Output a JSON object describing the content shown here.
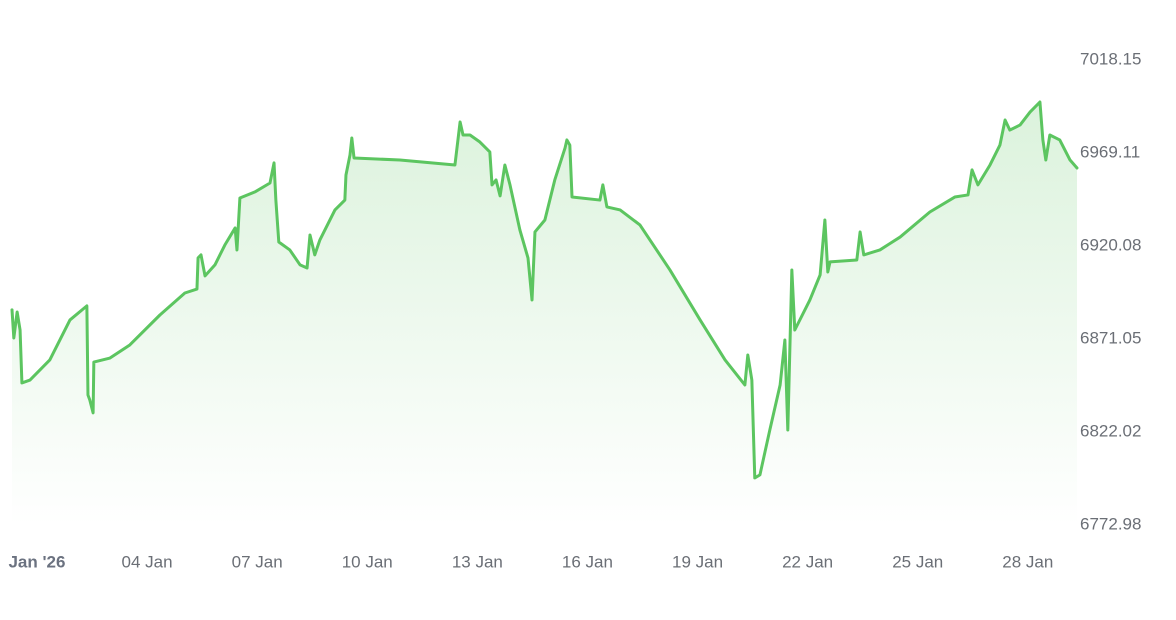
{
  "chart_data": {
    "type": "line",
    "color": "#5cc560",
    "x": [
      0.32,
      0.37,
      0.46,
      0.54,
      0.59,
      0.81,
      1.35,
      1.9,
      2.36,
      2.39,
      2.44,
      2.53,
      2.55,
      2.99,
      3.53,
      4.35,
      5.03,
      5.36,
      5.39,
      5.47,
      5.58,
      5.85,
      6.12,
      6.4,
      6.45,
      6.53,
      6.94,
      7.35,
      7.46,
      7.51,
      7.59,
      7.89,
      8.17,
      8.36,
      8.44,
      8.57,
      8.71,
      9.12,
      9.39,
      9.42,
      9.53,
      9.58,
      9.64,
      10.89,
      12.39,
      12.53,
      12.61,
      12.8,
      13.07,
      13.34,
      13.4,
      13.51,
      13.62,
      13.75,
      13.89,
      14.16,
      14.38,
      14.49,
      14.57,
      14.84,
      15.11,
      15.39,
      15.44,
      15.52,
      15.58,
      16.34,
      16.42,
      16.53,
      16.89,
      17.43,
      18.25,
      19.07,
      19.75,
      20.29,
      20.37,
      20.48,
      20.56,
      20.7,
      20.97,
      21.25,
      21.38,
      21.46,
      21.57,
      21.65,
      22.06,
      22.34,
      22.47,
      22.55,
      22.61,
      23.34,
      23.43,
      23.53,
      23.97,
      24.52,
      25.33,
      26.01,
      26.37,
      26.48,
      26.64,
      26.97,
      27.24,
      27.38,
      27.51,
      27.79,
      28.06,
      28.33,
      28.41,
      28.49,
      28.6,
      28.87,
      29.15,
      29.34
    ],
    "values": [
      6886.4,
      6871.6,
      6885.3,
      6875.8,
      6847.9,
      6849.4,
      6860.0,
      6881.1,
      6888.5,
      6841.5,
      6838.9,
      6832.1,
      6858.9,
      6861.0,
      6867.9,
      6883.7,
      6895.3,
      6897.4,
      6913.8,
      6915.4,
      6904.3,
      6910.1,
      6920.6,
      6929.6,
      6918.0,
      6945.4,
      6948.6,
      6953.3,
      6963.9,
      6944.3,
      6922.2,
      6918.0,
      6910.1,
      6908.5,
      6925.9,
      6915.4,
      6923.3,
      6939.1,
      6944.3,
      6957.5,
      6968.1,
      6977.0,
      6966.5,
      6965.4,
      6962.8,
      6985.5,
      6978.6,
      6978.6,
      6974.9,
      6969.7,
      6952.3,
      6954.9,
      6946.5,
      6962.8,
      6952.3,
      6928.5,
      6913.8,
      6891.6,
      6927.5,
      6933.8,
      6954.9,
      6971.8,
      6976.0,
      6973.3,
      6945.9,
      6944.3,
      6952.3,
      6940.7,
      6939.1,
      6931.2,
      6907.4,
      6881.1,
      6860.0,
      6846.8,
      6862.6,
      6849.4,
      6797.8,
      6799.4,
      6823.1,
      6846.8,
      6870.5,
      6823.1,
      6907.4,
      6875.8,
      6891.6,
      6904.8,
      6933.8,
      6906.4,
      6911.7,
      6912.7,
      6927.5,
      6915.4,
      6918.0,
      6924.8,
      6938.0,
      6945.9,
      6947.0,
      6960.2,
      6952.3,
      6962.8,
      6973.3,
      6986.5,
      6981.2,
      6983.9,
      6990.7,
      6996.0,
      6976.0,
      6965.4,
      6978.6,
      6976.0,
      6965.4,
      6961.2
    ],
    "xlim": [
      0.32,
      29.34
    ],
    "xticks": [
      {
        "value": 1,
        "label": "Jan '26"
      },
      {
        "value": 4,
        "label": "04 Jan"
      },
      {
        "value": 7,
        "label": "07 Jan"
      },
      {
        "value": 10,
        "label": "10 Jan"
      },
      {
        "value": 13,
        "label": "13 Jan"
      },
      {
        "value": 16,
        "label": "16 Jan"
      },
      {
        "value": 19,
        "label": "19 Jan"
      },
      {
        "value": 22,
        "label": "22 Jan"
      },
      {
        "value": 25,
        "label": "25 Jan"
      },
      {
        "value": 28,
        "label": "28 Jan"
      }
    ],
    "ylim": [
      6772.98,
      7018.15
    ],
    "yticks": [
      7018.15,
      6969.11,
      6920.08,
      6871.05,
      6822.02,
      6772.98
    ],
    "grid": false
  }
}
